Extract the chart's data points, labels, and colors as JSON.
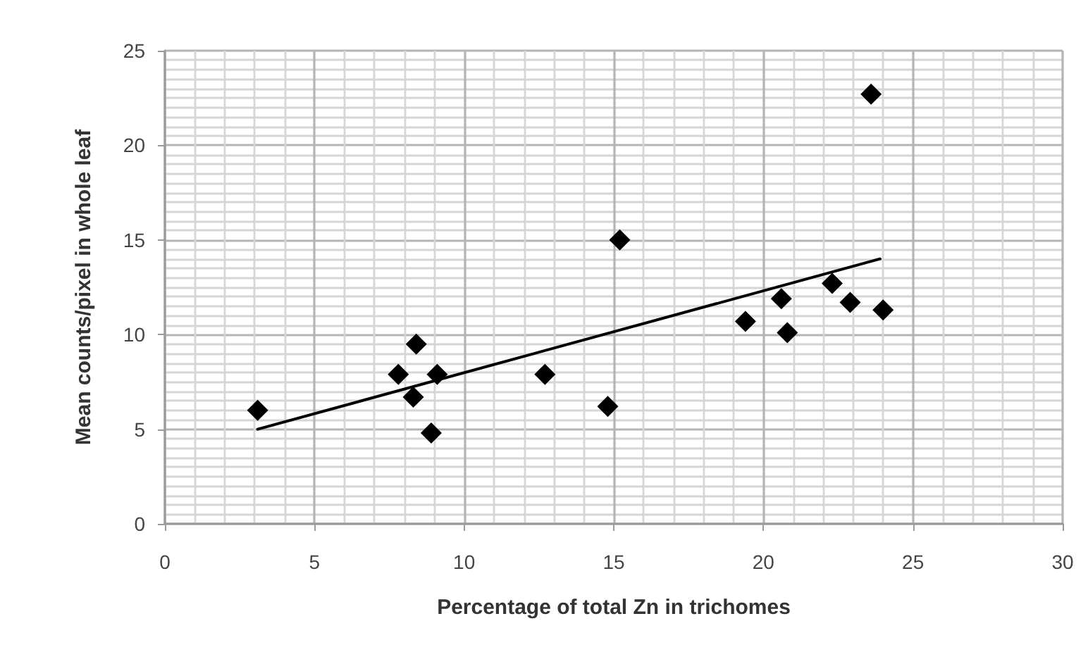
{
  "chart_data": {
    "type": "scatter",
    "xlabel": "Percentage of total Zn in trichomes",
    "ylabel": "Mean counts/pixel in whole leaf",
    "xlim": [
      0,
      30
    ],
    "ylim": [
      0,
      25
    ],
    "xticks": [
      0,
      5,
      10,
      15,
      20,
      25,
      30
    ],
    "yticks": [
      0,
      5,
      10,
      15,
      20,
      25
    ],
    "grid": true,
    "marker": "diamond",
    "series": [
      {
        "color": "#000000",
        "x": [
          3.1,
          7.8,
          8.4,
          8.3,
          9.1,
          8.9,
          12.7,
          14.8,
          15.2,
          19.4,
          20.6,
          20.8,
          22.3,
          22.9,
          23.6,
          24.0
        ],
        "values": [
          6.0,
          7.9,
          9.5,
          6.7,
          7.9,
          4.8,
          7.9,
          6.2,
          15.0,
          10.7,
          11.9,
          10.1,
          12.7,
          11.7,
          22.7,
          11.3
        ]
      },
      {
        "type": "line",
        "color": "#000000",
        "marker": "none",
        "x": [
          3.1,
          23.9
        ],
        "values": [
          5.0,
          14.0
        ]
      }
    ]
  }
}
